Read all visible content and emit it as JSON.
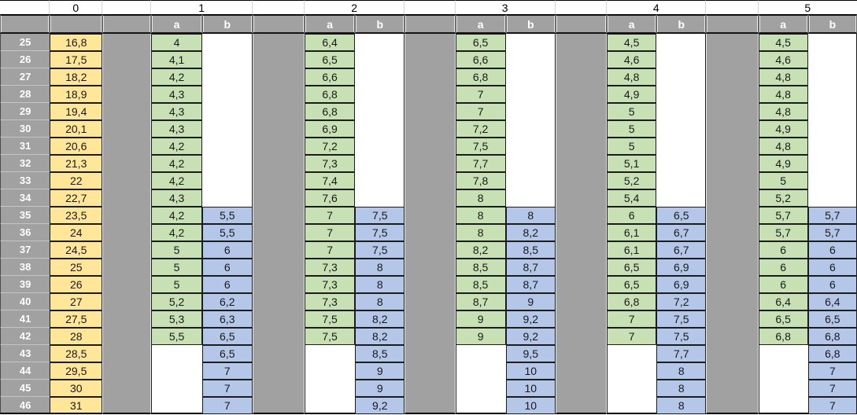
{
  "header": {
    "col0_label": "0",
    "group_labels": [
      "1",
      "2",
      "3",
      "4",
      "5"
    ],
    "sub_a": "a",
    "sub_b": "b"
  },
  "colors": {
    "col0_fill": "#FFE699",
    "a_fill": "#C7E1B5",
    "b_fill": "#B5C7E8",
    "gray_fill": "#A1A1A1",
    "header_text": "#FFFFFF",
    "cell_border": "#1C1C1C"
  },
  "rows": [
    {
      "num": "25",
      "v": "16,8",
      "g": [
        {
          "a": "4",
          "b": ""
        },
        {
          "a": "6,4",
          "b": ""
        },
        {
          "a": "6,5",
          "b": ""
        },
        {
          "a": "4,5",
          "b": ""
        },
        {
          "a": "4,5",
          "b": ""
        }
      ]
    },
    {
      "num": "26",
      "v": "17,5",
      "g": [
        {
          "a": "4,1",
          "b": ""
        },
        {
          "a": "6,5",
          "b": ""
        },
        {
          "a": "6,6",
          "b": ""
        },
        {
          "a": "4,6",
          "b": ""
        },
        {
          "a": "4,6",
          "b": ""
        }
      ]
    },
    {
      "num": "27",
      "v": "18,2",
      "g": [
        {
          "a": "4,2",
          "b": ""
        },
        {
          "a": "6,6",
          "b": ""
        },
        {
          "a": "6,8",
          "b": ""
        },
        {
          "a": "4,8",
          "b": ""
        },
        {
          "a": "4,8",
          "b": ""
        }
      ]
    },
    {
      "num": "28",
      "v": "18,9",
      "g": [
        {
          "a": "4,3",
          "b": ""
        },
        {
          "a": "6,8",
          "b": ""
        },
        {
          "a": "7",
          "b": ""
        },
        {
          "a": "4,9",
          "b": ""
        },
        {
          "a": "4,8",
          "b": ""
        }
      ]
    },
    {
      "num": "29",
      "v": "19,4",
      "g": [
        {
          "a": "4,3",
          "b": ""
        },
        {
          "a": "6,8",
          "b": ""
        },
        {
          "a": "7",
          "b": ""
        },
        {
          "a": "5",
          "b": ""
        },
        {
          "a": "4,8",
          "b": ""
        }
      ]
    },
    {
      "num": "30",
      "v": "20,1",
      "g": [
        {
          "a": "4,3",
          "b": ""
        },
        {
          "a": "6,9",
          "b": ""
        },
        {
          "a": "7,2",
          "b": ""
        },
        {
          "a": "5",
          "b": ""
        },
        {
          "a": "4,9",
          "b": ""
        }
      ]
    },
    {
      "num": "31",
      "v": "20,6",
      "g": [
        {
          "a": "4,2",
          "b": ""
        },
        {
          "a": "7,2",
          "b": ""
        },
        {
          "a": "7,5",
          "b": ""
        },
        {
          "a": "5",
          "b": ""
        },
        {
          "a": "4,8",
          "b": ""
        }
      ]
    },
    {
      "num": "32",
      "v": "21,3",
      "g": [
        {
          "a": "4,2",
          "b": ""
        },
        {
          "a": "7,3",
          "b": ""
        },
        {
          "a": "7,7",
          "b": ""
        },
        {
          "a": "5,1",
          "b": ""
        },
        {
          "a": "4,9",
          "b": ""
        }
      ]
    },
    {
      "num": "33",
      "v": "22",
      "g": [
        {
          "a": "4,2",
          "b": ""
        },
        {
          "a": "7,4",
          "b": ""
        },
        {
          "a": "7,8",
          "b": ""
        },
        {
          "a": "5,2",
          "b": ""
        },
        {
          "a": "5",
          "b": ""
        }
      ]
    },
    {
      "num": "34",
      "v": "22,7",
      "g": [
        {
          "a": "4,3",
          "b": ""
        },
        {
          "a": "7,6",
          "b": ""
        },
        {
          "a": "8",
          "b": ""
        },
        {
          "a": "5,4",
          "b": ""
        },
        {
          "a": "5,2",
          "b": ""
        }
      ]
    },
    {
      "num": "35",
      "v": "23,5",
      "g": [
        {
          "a": "4,2",
          "b": "5,5"
        },
        {
          "a": "7",
          "b": "7,5"
        },
        {
          "a": "8",
          "b": "8"
        },
        {
          "a": "6",
          "b": "6,5"
        },
        {
          "a": "5,7",
          "b": "5,7"
        }
      ]
    },
    {
      "num": "36",
      "v": "24",
      "g": [
        {
          "a": "4,2",
          "b": "5,5"
        },
        {
          "a": "7",
          "b": "7,5"
        },
        {
          "a": "8",
          "b": "8,2"
        },
        {
          "a": "6,1",
          "b": "6,7"
        },
        {
          "a": "5,7",
          "b": "5,7"
        }
      ]
    },
    {
      "num": "37",
      "v": "24,5",
      "g": [
        {
          "a": "5",
          "b": "6"
        },
        {
          "a": "7",
          "b": "7,5"
        },
        {
          "a": "8,2",
          "b": "8,5"
        },
        {
          "a": "6,1",
          "b": "6,7"
        },
        {
          "a": "6",
          "b": "6"
        }
      ]
    },
    {
      "num": "38",
      "v": "25",
      "g": [
        {
          "a": "5",
          "b": "6"
        },
        {
          "a": "7,3",
          "b": "8"
        },
        {
          "a": "8,5",
          "b": "8,7"
        },
        {
          "a": "6,5",
          "b": "6,9"
        },
        {
          "a": "6",
          "b": "6"
        }
      ]
    },
    {
      "num": "39",
      "v": "26",
      "g": [
        {
          "a": "5",
          "b": "6"
        },
        {
          "a": "7,3",
          "b": "8"
        },
        {
          "a": "8,5",
          "b": "8,7"
        },
        {
          "a": "6,5",
          "b": "6,9"
        },
        {
          "a": "6",
          "b": "6"
        }
      ]
    },
    {
      "num": "40",
      "v": "27",
      "g": [
        {
          "a": "5,2",
          "b": "6,2"
        },
        {
          "a": "7,3",
          "b": "8"
        },
        {
          "a": "8,7",
          "b": "9"
        },
        {
          "a": "6,8",
          "b": "7,2"
        },
        {
          "a": "6,4",
          "b": "6,4"
        }
      ]
    },
    {
      "num": "41",
      "v": "27,5",
      "g": [
        {
          "a": "5,3",
          "b": "6,3"
        },
        {
          "a": "7,5",
          "b": "8,2"
        },
        {
          "a": "9",
          "b": "9,2"
        },
        {
          "a": "7",
          "b": "7,5"
        },
        {
          "a": "6,5",
          "b": "6,5"
        }
      ]
    },
    {
      "num": "42",
      "v": "28",
      "g": [
        {
          "a": "5,5",
          "b": "6,5"
        },
        {
          "a": "7,5",
          "b": "8,2"
        },
        {
          "a": "9",
          "b": "9,2"
        },
        {
          "a": "7",
          "b": "7,5"
        },
        {
          "a": "6,8",
          "b": "6,8"
        }
      ]
    },
    {
      "num": "43",
      "v": "28,5",
      "g": [
        {
          "a": "",
          "b": "6,5"
        },
        {
          "a": "",
          "b": "8,5"
        },
        {
          "a": "",
          "b": "9,5"
        },
        {
          "a": "",
          "b": "7,7"
        },
        {
          "a": "",
          "b": "6,8"
        }
      ]
    },
    {
      "num": "44",
      "v": "29,5",
      "g": [
        {
          "a": "",
          "b": "7"
        },
        {
          "a": "",
          "b": "9"
        },
        {
          "a": "",
          "b": "10"
        },
        {
          "a": "",
          "b": "8"
        },
        {
          "a": "",
          "b": "7"
        }
      ]
    },
    {
      "num": "45",
      "v": "30",
      "g": [
        {
          "a": "",
          "b": "7"
        },
        {
          "a": "",
          "b": "9"
        },
        {
          "a": "",
          "b": "10"
        },
        {
          "a": "",
          "b": "8"
        },
        {
          "a": "",
          "b": "7"
        }
      ]
    },
    {
      "num": "46",
      "v": "31",
      "g": [
        {
          "a": "",
          "b": "7"
        },
        {
          "a": "",
          "b": "9,2"
        },
        {
          "a": "",
          "b": "10"
        },
        {
          "a": "",
          "b": "8"
        },
        {
          "a": "",
          "b": "7"
        }
      ]
    }
  ]
}
